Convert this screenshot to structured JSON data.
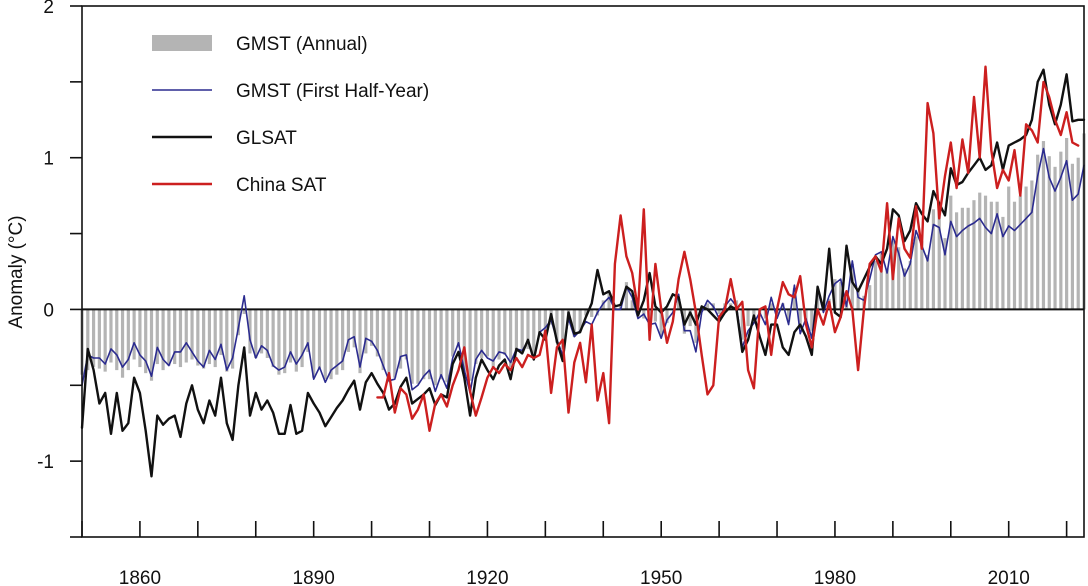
{
  "chart_data": {
    "type": "line",
    "title": "",
    "xlabel": "",
    "ylabel": "Anomaly (°C)",
    "xlim": [
      1850,
      2023
    ],
    "ylim": [
      -1.5,
      2
    ],
    "x_ticks": [
      1860,
      1890,
      1920,
      1950,
      1980,
      2010
    ],
    "y_ticks": [
      -1,
      0,
      1,
      2
    ],
    "y_minor_ticks": [
      -1.5,
      -0.5,
      0.5,
      1.5
    ],
    "zero_line": 0,
    "legend": {
      "placement": "top-left",
      "entries": [
        "GMST (Annual)",
        "GMST (First Half-Year)",
        "GLSAT",
        "China SAT"
      ]
    },
    "series": [
      {
        "name": "GMST (Annual)",
        "style": "bars",
        "color": "#b4b4b4",
        "x_start": 1850,
        "values": [
          -0.43,
          -0.4,
          -0.38,
          -0.39,
          -0.41,
          -0.35,
          -0.4,
          -0.45,
          -0.4,
          -0.33,
          -0.38,
          -0.42,
          -0.47,
          -0.36,
          -0.4,
          -0.37,
          -0.36,
          -0.38,
          -0.35,
          -0.33,
          -0.37,
          -0.39,
          -0.36,
          -0.38,
          -0.3,
          -0.41,
          -0.39,
          -0.17,
          -0.03,
          -0.29,
          -0.32,
          -0.29,
          -0.32,
          -0.38,
          -0.43,
          -0.42,
          -0.35,
          -0.41,
          -0.38,
          -0.28,
          -0.45,
          -0.39,
          -0.46,
          -0.46,
          -0.43,
          -0.4,
          -0.28,
          -0.25,
          -0.42,
          -0.29,
          -0.24,
          -0.31,
          -0.4,
          -0.48,
          -0.45,
          -0.39,
          -0.33,
          -0.49,
          -0.49,
          -0.46,
          -0.46,
          -0.5,
          -0.46,
          -0.48,
          -0.31,
          -0.25,
          -0.41,
          -0.47,
          -0.36,
          -0.32,
          -0.31,
          -0.38,
          -0.33,
          -0.3,
          -0.38,
          -0.28,
          -0.26,
          -0.26,
          -0.29,
          -0.17,
          -0.16,
          -0.1,
          -0.22,
          -0.26,
          -0.09,
          -0.18,
          -0.14,
          -0.04,
          -0.05,
          -0.04,
          0.06,
          0.11,
          0.01,
          0.02,
          0.18,
          0.06,
          -0.04,
          -0.06,
          -0.08,
          -0.08,
          -0.17,
          -0.09,
          0.0,
          0.07,
          -0.16,
          -0.11,
          -0.22,
          0.01,
          0.04,
          0.04,
          -0.03,
          0.04,
          0.04,
          0.06,
          -0.2,
          -0.11,
          -0.06,
          -0.04,
          -0.06,
          0.04,
          -0.03,
          0.04,
          -0.08,
          0.14,
          -0.11,
          -0.07,
          -0.14,
          0.12,
          0.01,
          0.07,
          0.2,
          0.18,
          0.05,
          0.3,
          0.12,
          0.09,
          0.16,
          0.32,
          0.37,
          0.27,
          0.45,
          0.41,
          0.27,
          0.32,
          0.48,
          0.45,
          0.36,
          0.66,
          0.64,
          0.47,
          0.75,
          0.64,
          0.67,
          0.67,
          0.72,
          0.77,
          0.75,
          0.71,
          0.71,
          0.61,
          0.81,
          0.71,
          0.75,
          0.81,
          0.85,
          1.02,
          1.11,
          1.01,
          0.94,
          1.04,
          1.13,
          0.96,
          1.0,
          1.16
        ]
      },
      {
        "name": "GMST (First Half-Year)",
        "style": "line",
        "color": "#2b2b8f",
        "x_start": 1850,
        "values": [
          -0.5,
          -0.3,
          -0.32,
          -0.32,
          -0.36,
          -0.26,
          -0.3,
          -0.38,
          -0.33,
          -0.22,
          -0.3,
          -0.34,
          -0.44,
          -0.25,
          -0.33,
          -0.37,
          -0.28,
          -0.28,
          -0.22,
          -0.28,
          -0.34,
          -0.38,
          -0.27,
          -0.33,
          -0.23,
          -0.4,
          -0.32,
          -0.12,
          0.09,
          -0.2,
          -0.32,
          -0.24,
          -0.27,
          -0.37,
          -0.4,
          -0.38,
          -0.28,
          -0.36,
          -0.3,
          -0.22,
          -0.46,
          -0.38,
          -0.48,
          -0.4,
          -0.37,
          -0.34,
          -0.2,
          -0.18,
          -0.38,
          -0.19,
          -0.21,
          -0.27,
          -0.37,
          -0.47,
          -0.46,
          -0.31,
          -0.3,
          -0.53,
          -0.5,
          -0.44,
          -0.4,
          -0.54,
          -0.43,
          -0.52,
          -0.32,
          -0.22,
          -0.4,
          -0.55,
          -0.33,
          -0.27,
          -0.32,
          -0.34,
          -0.28,
          -0.29,
          -0.35,
          -0.26,
          -0.27,
          -0.21,
          -0.33,
          -0.15,
          -0.12,
          -0.07,
          -0.2,
          -0.3,
          -0.06,
          -0.18,
          -0.14,
          -0.08,
          -0.1,
          -0.02,
          0.04,
          0.08,
          0.0,
          0.0,
          0.15,
          0.08,
          -0.06,
          -0.03,
          -0.1,
          -0.09,
          -0.19,
          -0.07,
          -0.02,
          0.1,
          -0.14,
          -0.14,
          -0.28,
          -0.02,
          0.06,
          0.02,
          -0.06,
          0.02,
          0.07,
          0.02,
          -0.25,
          -0.14,
          -0.09,
          -0.02,
          -0.1,
          0.08,
          -0.06,
          0.04,
          -0.1,
          0.16,
          -0.16,
          -0.06,
          -0.19,
          0.14,
          -0.02,
          0.09,
          0.17,
          0.2,
          0.02,
          0.32,
          0.08,
          0.06,
          0.2,
          0.36,
          0.38,
          0.24,
          0.48,
          0.37,
          0.22,
          0.3,
          0.52,
          0.42,
          0.32,
          0.56,
          0.54,
          0.36,
          0.58,
          0.48,
          0.52,
          0.55,
          0.57,
          0.6,
          0.54,
          0.5,
          0.63,
          0.48,
          0.55,
          0.52,
          0.56,
          0.6,
          0.64,
          0.88,
          1.06,
          0.87,
          0.78,
          0.87,
          0.98,
          0.72,
          0.76,
          0.95
        ]
      },
      {
        "name": "GLSAT",
        "style": "line",
        "color": "#111111",
        "x_start": 1850,
        "values": [
          -0.78,
          -0.26,
          -0.4,
          -0.62,
          -0.55,
          -0.82,
          -0.55,
          -0.8,
          -0.75,
          -0.45,
          -0.55,
          -0.8,
          -1.1,
          -0.7,
          -0.76,
          -0.72,
          -0.7,
          -0.84,
          -0.62,
          -0.5,
          -0.66,
          -0.75,
          -0.6,
          -0.7,
          -0.45,
          -0.75,
          -0.86,
          -0.5,
          -0.25,
          -0.7,
          -0.55,
          -0.66,
          -0.6,
          -0.68,
          -0.82,
          -0.82,
          -0.63,
          -0.82,
          -0.8,
          -0.55,
          -0.62,
          -0.68,
          -0.77,
          -0.71,
          -0.65,
          -0.6,
          -0.53,
          -0.47,
          -0.66,
          -0.48,
          -0.42,
          -0.49,
          -0.55,
          -0.66,
          -0.62,
          -0.51,
          -0.45,
          -0.62,
          -0.59,
          -0.56,
          -0.52,
          -0.63,
          -0.56,
          -0.58,
          -0.36,
          -0.28,
          -0.45,
          -0.7,
          -0.45,
          -0.33,
          -0.4,
          -0.46,
          -0.37,
          -0.33,
          -0.46,
          -0.26,
          -0.29,
          -0.2,
          -0.33,
          -0.15,
          -0.2,
          -0.03,
          -0.21,
          -0.34,
          -0.02,
          -0.16,
          -0.15,
          -0.05,
          0.04,
          0.26,
          0.1,
          0.12,
          0.02,
          0.03,
          0.15,
          0.12,
          -0.04,
          0.06,
          0.24,
          0.02,
          -0.02,
          0.02,
          0.1,
          0.08,
          -0.1,
          -0.02,
          -0.1,
          0.02,
          0.0,
          -0.04,
          -0.08,
          -0.02,
          0.02,
          0.0,
          -0.28,
          -0.2,
          -0.04,
          -0.18,
          -0.3,
          -0.1,
          -0.1,
          -0.25,
          -0.3,
          -0.15,
          -0.1,
          -0.18,
          -0.3,
          0.15,
          0.0,
          0.4,
          -0.02,
          -0.05,
          0.42,
          0.18,
          0.12,
          0.2,
          0.28,
          0.35,
          0.3,
          0.4,
          0.66,
          0.62,
          0.45,
          0.52,
          0.7,
          0.63,
          0.58,
          0.78,
          0.7,
          0.62,
          0.93,
          0.82,
          0.84,
          0.9,
          0.95,
          1.0,
          0.92,
          0.95,
          1.1,
          0.92,
          1.08,
          1.1,
          1.12,
          1.15,
          1.25,
          1.5,
          1.58,
          1.35,
          1.22,
          1.35,
          1.55,
          1.24,
          1.25,
          1.25
        ]
      },
      {
        "name": "China SAT",
        "style": "line",
        "color": "#cc1f1f",
        "x_start": 1901,
        "values": [
          -0.58,
          -0.58,
          -0.42,
          -0.68,
          -0.52,
          -0.56,
          -0.72,
          -0.66,
          -0.56,
          -0.8,
          -0.62,
          -0.56,
          -0.64,
          -0.5,
          -0.4,
          -0.25,
          -0.54,
          -0.7,
          -0.58,
          -0.45,
          -0.38,
          -0.42,
          -0.36,
          -0.4,
          -0.32,
          -0.38,
          -0.3,
          -0.32,
          -0.3,
          -0.14,
          -0.55,
          -0.25,
          -0.2,
          -0.68,
          -0.35,
          -0.22,
          -0.48,
          -0.1,
          -0.6,
          -0.42,
          -0.75,
          0.3,
          0.62,
          0.35,
          0.24,
          0.0,
          0.66,
          -0.2,
          0.3,
          0.0,
          -0.22,
          -0.08,
          0.2,
          0.38,
          0.2,
          -0.02,
          -0.3,
          -0.56,
          -0.5,
          -0.05,
          0.0,
          0.2,
          0.0,
          0.05,
          -0.4,
          -0.52,
          0.0,
          0.02,
          -0.3,
          0.0,
          0.18,
          0.1,
          0.08,
          0.22,
          -0.1,
          -0.25,
          0.0,
          -0.1,
          0.05,
          -0.15,
          -0.05,
          0.12,
          0.0,
          -0.4,
          0.0,
          0.3,
          0.35,
          0.25,
          0.7,
          0.2,
          0.6,
          0.4,
          0.34,
          0.68,
          0.4,
          1.36,
          1.16,
          0.6,
          0.88,
          1.1,
          0.8,
          1.12,
          0.9,
          1.4,
          1.0,
          1.6,
          1.05,
          0.8,
          0.92,
          0.85,
          1.05,
          0.75,
          1.22,
          1.18,
          1.1,
          1.5,
          1.4,
          1.25,
          1.15,
          1.3,
          1.1,
          1.08
        ]
      }
    ]
  }
}
